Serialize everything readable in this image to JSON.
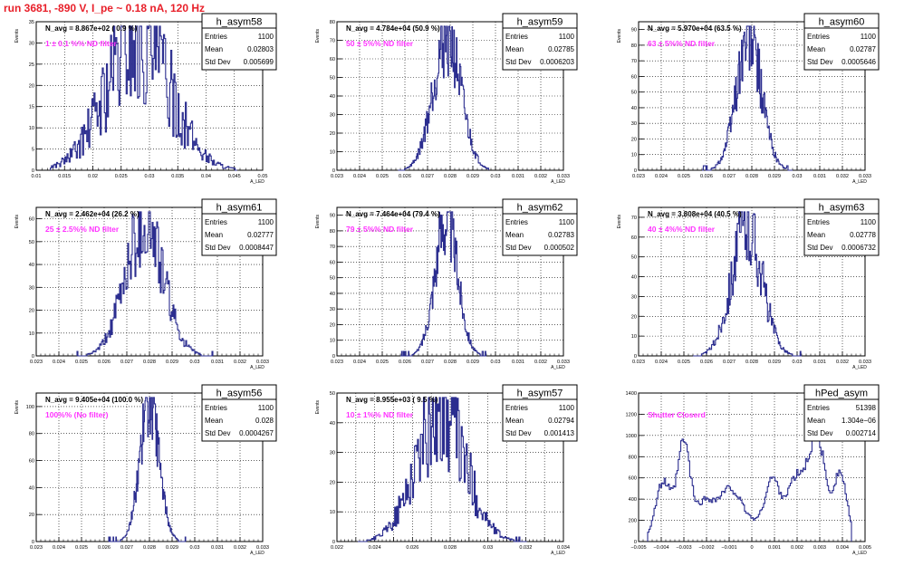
{
  "run_title": "run 3681,  -890 V, I_pe ~ 0.18 nA, 120 Hz",
  "colors": {
    "histogram": "#2b2d8f",
    "annotation": "#ff33ff",
    "title": "#e8202a"
  },
  "stats_labels": {
    "entries": "Entries",
    "mean": "Mean",
    "std": "Std Dev"
  },
  "chart_data": [
    {
      "type": "histogram",
      "name": "h_asym58",
      "entries": "1100",
      "mean": "0.02803",
      "std_dev": "0.005699",
      "navg": "N_avg = 8.867e+02 ( 0.9 %)",
      "annotation": "1 ± 0.1 %% ND filter",
      "xlabel": "A_LED",
      "ylabel": "Events",
      "xlim": [
        0.01,
        0.05
      ],
      "ylim": [
        0,
        35
      ],
      "xticks": [
        "0.01",
        "0.015",
        "0.02",
        "0.025",
        "0.03",
        "0.035",
        "0.04",
        "0.045",
        "0.05"
      ],
      "yticks": [
        "0",
        "5",
        "10",
        "15",
        "20",
        "25",
        "30",
        "35"
      ],
      "center": 0.028,
      "sigma": 0.0057,
      "peak": 31,
      "xlo": 0.0125,
      "xhi": 0.0455,
      "nbins": 180,
      "seed": 58,
      "noise": 0.55
    },
    {
      "type": "histogram",
      "name": "h_asym59",
      "entries": "1100",
      "mean": "0.02785",
      "std_dev": "0.0006203",
      "navg": "N_avg = 4.784e+04 (50.9 %)",
      "annotation": "50 ± 5%% ND filter",
      "xlabel": "A_LED",
      "ylabel": "Events",
      "xlim": [
        0.023,
        0.033
      ],
      "ylim": [
        0,
        80
      ],
      "xticks": [
        "0.023",
        "0.024",
        "0.025",
        "0.026",
        "0.027",
        "0.028",
        "0.029",
        "0.03",
        "0.031",
        "0.032",
        "0.033"
      ],
      "yticks": [
        "0",
        "10",
        "20",
        "30",
        "40",
        "50",
        "60",
        "70",
        "80"
      ],
      "center": 0.02785,
      "sigma": 0.00062,
      "peak": 72,
      "xlo": 0.0257,
      "xhi": 0.0297,
      "nbins": 140,
      "seed": 59,
      "noise": 0.3
    },
    {
      "type": "histogram",
      "name": "h_asym60",
      "entries": "1100",
      "mean": "0.02787",
      "std_dev": "0.0005646",
      "navg": "N_avg = 5.970e+04 (63.5 %)",
      "annotation": "63 ± 5%% ND filter",
      "xlabel": "A_LED",
      "ylabel": "Events",
      "xlim": [
        0.023,
        0.033
      ],
      "ylim": [
        0,
        95
      ],
      "xticks": [
        "0.023",
        "0.024",
        "0.025",
        "0.026",
        "0.027",
        "0.028",
        "0.029",
        "0.03",
        "0.031",
        "0.032",
        "0.033"
      ],
      "yticks": [
        "0",
        "10",
        "20",
        "30",
        "40",
        "50",
        "60",
        "70",
        "80",
        "90"
      ],
      "center": 0.02787,
      "sigma": 0.00056,
      "peak": 84,
      "xlo": 0.0258,
      "xhi": 0.0298,
      "nbins": 140,
      "seed": 60,
      "noise": 0.3
    },
    {
      "type": "histogram",
      "name": "h_asym61",
      "entries": "1100",
      "mean": "0.02777",
      "std_dev": "0.0008447",
      "navg": "N_avg = 2.462e+04 (26.2 %)",
      "annotation": "25 ± 2.5%% ND filter",
      "xlabel": "A_LED",
      "ylabel": "Events",
      "xlim": [
        0.023,
        0.033
      ],
      "ylim": [
        0,
        65
      ],
      "xticks": [
        "0.023",
        "0.024",
        "0.025",
        "0.026",
        "0.027",
        "0.028",
        "0.029",
        "0.03",
        "0.031",
        "0.032",
        "0.033"
      ],
      "yticks": [
        "0",
        "10",
        "20",
        "30",
        "40",
        "50",
        "60"
      ],
      "center": 0.02777,
      "sigma": 0.00084,
      "peak": 58,
      "xlo": 0.0248,
      "xhi": 0.0308,
      "nbins": 150,
      "seed": 61,
      "noise": 0.35
    },
    {
      "type": "histogram",
      "name": "h_asym62",
      "entries": "1100",
      "mean": "0.02783",
      "std_dev": "0.000502",
      "navg": "N_avg = 7.464e+04 (79.4 %)",
      "annotation": "79 ± 5%% ND filter",
      "xlabel": "A_LED",
      "ylabel": "Events",
      "xlim": [
        0.023,
        0.033
      ],
      "ylim": [
        0,
        95
      ],
      "xticks": [
        "0.023",
        "0.024",
        "0.025",
        "0.026",
        "0.027",
        "0.028",
        "0.029",
        "0.03",
        "0.031",
        "0.032",
        "0.033"
      ],
      "yticks": [
        "0",
        "10",
        "20",
        "30",
        "40",
        "50",
        "60",
        "70",
        "80",
        "90"
      ],
      "center": 0.02783,
      "sigma": 0.0005,
      "peak": 88,
      "xlo": 0.0258,
      "xhi": 0.0296,
      "nbins": 140,
      "seed": 62,
      "noise": 0.28
    },
    {
      "type": "histogram",
      "name": "h_asym63",
      "entries": "1100",
      "mean": "0.02778",
      "std_dev": "0.0006732",
      "navg": "N_avg = 3.808e+04 (40.5 %)",
      "annotation": "40 ± 4%% ND filter",
      "xlabel": "A_LED",
      "ylabel": "Events",
      "xlim": [
        0.023,
        0.033
      ],
      "ylim": [
        0,
        75
      ],
      "xticks": [
        "0.023",
        "0.024",
        "0.025",
        "0.026",
        "0.027",
        "0.028",
        "0.029",
        "0.03",
        "0.031",
        "0.032",
        "0.033"
      ],
      "yticks": [
        "0",
        "10",
        "20",
        "30",
        "40",
        "50",
        "60",
        "70"
      ],
      "center": 0.02778,
      "sigma": 0.00067,
      "peak": 66,
      "xlo": 0.0254,
      "xhi": 0.0302,
      "nbins": 140,
      "seed": 63,
      "noise": 0.32
    },
    {
      "type": "histogram",
      "name": "h_asym56",
      "entries": "1100",
      "mean": "0.028",
      "std_dev": "0.0004267",
      "navg": "N_avg = 9.405e+04 (100.0 %)",
      "annotation": "100%% (No filter)",
      "xlabel": "A_LED",
      "ylabel": "Events",
      "xlim": [
        0.023,
        0.033
      ],
      "ylim": [
        0,
        110
      ],
      "xticks": [
        "0.023",
        "0.024",
        "0.025",
        "0.026",
        "0.027",
        "0.028",
        "0.029",
        "0.03",
        "0.031",
        "0.032",
        "0.033"
      ],
      "yticks": [
        "0",
        "20",
        "40",
        "60",
        "80",
        "100"
      ],
      "center": 0.028,
      "sigma": 0.00043,
      "peak": 102,
      "xlo": 0.0262,
      "xhi": 0.0296,
      "nbins": 140,
      "seed": 56,
      "noise": 0.25
    },
    {
      "type": "histogram",
      "name": "h_asym57",
      "entries": "1100",
      "mean": "0.02794",
      "std_dev": "0.001413",
      "navg": "N_avg = 8.955e+03 ( 9.5 %)",
      "annotation": "10 ± 1%% ND filter",
      "xlabel": "A_LED",
      "ylabel": "Events",
      "xlim": [
        0.022,
        0.035
      ],
      "ylim": [
        0,
        50
      ],
      "xticks": [
        "0.022",
        "",
        "0.024",
        "",
        "0.026",
        "",
        "0.028",
        "",
        "0.03",
        "",
        "0.032",
        "",
        "0.034"
      ],
      "yticks": [
        "0",
        "10",
        "20",
        "30",
        "40",
        "50"
      ],
      "center": 0.02794,
      "sigma": 0.00141,
      "peak": 44,
      "xlo": 0.0232,
      "xhi": 0.0329,
      "nbins": 170,
      "seed": 57,
      "noise": 0.45
    },
    {
      "type": "histogram",
      "name": "hPed_asym",
      "entries": "51398",
      "mean": "1.304e−06",
      "std_dev": "0.002714",
      "navg": "",
      "annotation": "Shutter Closerd",
      "xlabel": "A_LED",
      "ylabel": "",
      "xlim": [
        -0.005,
        0.005
      ],
      "ylim": [
        0,
        1400
      ],
      "xticks": [
        "−0.005",
        "−0.004",
        "−0.003",
        "−0.002",
        "−0.001",
        "0",
        "0.001",
        "0.002",
        "0.003",
        "0.004",
        "0.005"
      ],
      "yticks": [
        "0",
        "200",
        "400",
        "600",
        "800",
        "1000",
        "1200",
        "1400"
      ],
      "multimodal": [
        {
          "mu": -0.0039,
          "s": 0.00035,
          "a": 560
        },
        {
          "mu": -0.003,
          "s": 0.00028,
          "a": 900
        },
        {
          "mu": -0.0021,
          "s": 0.0004,
          "a": 330
        },
        {
          "mu": -0.001,
          "s": 0.0005,
          "a": 390
        },
        {
          "mu": 0.0002,
          "s": 0.0012,
          "a": 170
        },
        {
          "mu": 0.0009,
          "s": 0.0003,
          "a": 430
        },
        {
          "mu": 0.002,
          "s": 0.00045,
          "a": 540
        },
        {
          "mu": 0.0029,
          "s": 0.00035,
          "a": 930
        },
        {
          "mu": 0.0039,
          "s": 0.0003,
          "a": 640
        }
      ],
      "xlo": -0.0046,
      "xhi": 0.0044,
      "nbins": 160,
      "seed": 99,
      "noise": 0.08
    }
  ]
}
